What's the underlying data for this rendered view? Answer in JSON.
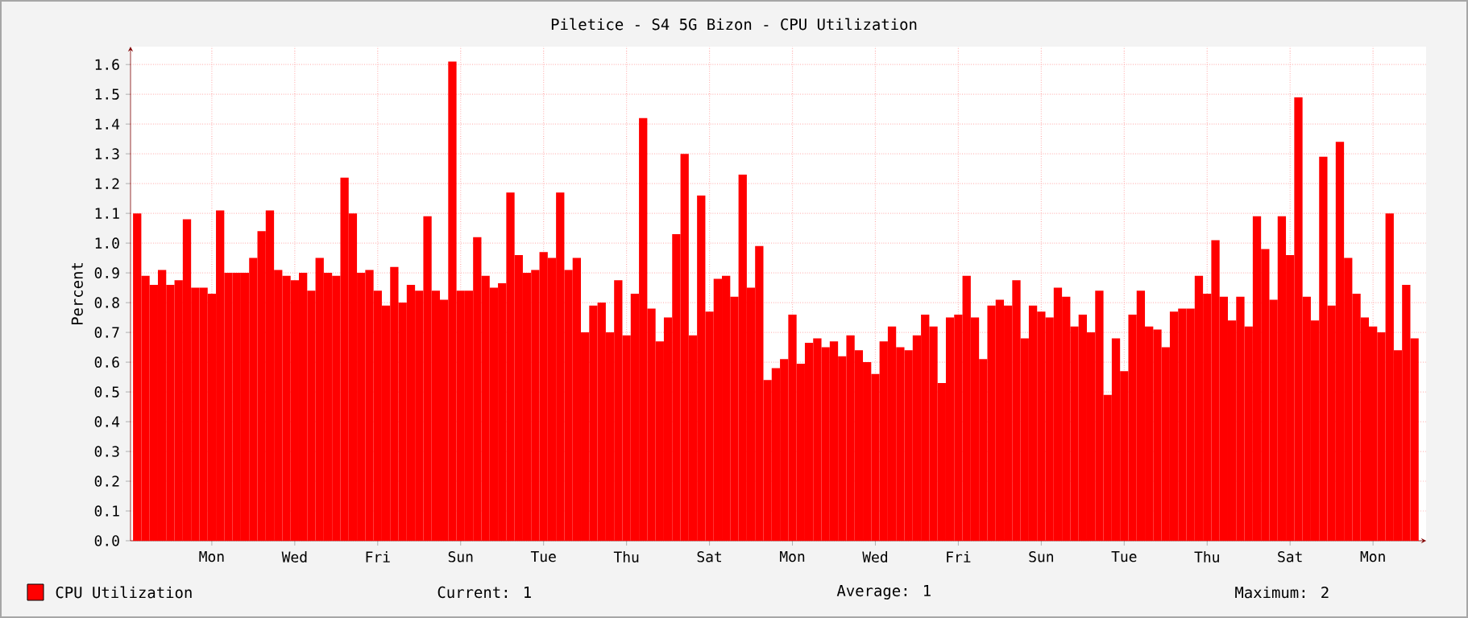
{
  "chart_data": {
    "type": "bar",
    "title": "Piletice - S4 5G Bizon - CPU Utilization",
    "ylabel": "Percent",
    "categories": [
      null,
      null,
      null,
      null,
      null,
      null,
      null,
      null,
      null,
      "Mon",
      null,
      null,
      null,
      null,
      null,
      null,
      null,
      null,
      null,
      "Wed",
      null,
      null,
      null,
      null,
      null,
      null,
      null,
      null,
      null,
      "Fri",
      null,
      null,
      null,
      null,
      null,
      null,
      null,
      null,
      null,
      "Sun",
      null,
      null,
      null,
      null,
      null,
      null,
      null,
      null,
      null,
      "Tue",
      null,
      null,
      null,
      null,
      null,
      null,
      null,
      null,
      null,
      "Thu",
      null,
      null,
      null,
      null,
      null,
      null,
      null,
      null,
      null,
      "Sat",
      null,
      null,
      null,
      null,
      null,
      null,
      null,
      null,
      null,
      "Mon",
      null,
      null,
      null,
      null,
      null,
      null,
      null,
      null,
      null,
      "Wed",
      null,
      null,
      null,
      null,
      null,
      null,
      null,
      null,
      null,
      "Fri",
      null,
      null,
      null,
      null,
      null,
      null,
      null,
      null,
      null,
      "Sun",
      null,
      null,
      null,
      null,
      null,
      null,
      null,
      null,
      null,
      "Tue",
      null,
      null,
      null,
      null,
      null,
      null,
      null,
      null,
      null,
      "Thu",
      null,
      null,
      null,
      null,
      null,
      null,
      null,
      null,
      null,
      "Sat",
      null,
      null,
      null,
      null,
      null,
      null,
      null,
      null,
      null,
      "Mon",
      null,
      null,
      null,
      null,
      null
    ],
    "ylim": [
      0,
      1.66
    ],
    "yticks": [
      {
        "value": 0,
        "label": "0.0"
      },
      0.1,
      0.2,
      0.3,
      0.4,
      0.5,
      0.6,
      0.7,
      0.8,
      0.9,
      {
        "value": 1,
        "label": "1.0"
      },
      1.1,
      1.2,
      1.3,
      1.4,
      1.5,
      1.6
    ],
    "grid": true,
    "legend": "bottom",
    "series": [
      {
        "name": "CPU Utilization",
        "color": "#ff0000",
        "values": [
          1.1,
          0.89,
          0.86,
          0.91,
          0.86,
          0.875,
          1.08,
          0.85,
          0.85,
          0.83,
          1.11,
          0.9,
          0.9,
          0.9,
          0.95,
          1.04,
          1.11,
          0.91,
          0.89,
          0.875,
          0.9,
          0.84,
          0.95,
          0.9,
          0.89,
          1.22,
          1.1,
          0.9,
          0.91,
          0.84,
          0.79,
          0.92,
          0.8,
          0.86,
          0.84,
          1.09,
          0.84,
          0.81,
          1.61,
          0.84,
          0.84,
          1.02,
          0.89,
          0.85,
          0.865,
          1.17,
          0.96,
          0.9,
          0.91,
          0.97,
          0.95,
          1.17,
          0.91,
          0.95,
          0.7,
          0.79,
          0.8,
          0.7,
          0.875,
          0.69,
          0.83,
          1.42,
          0.78,
          0.67,
          0.75,
          1.03,
          1.3,
          0.69,
          1.16,
          0.77,
          0.88,
          0.89,
          0.82,
          1.23,
          0.85,
          0.99,
          0.54,
          0.58,
          0.61,
          0.76,
          0.595,
          0.665,
          0.68,
          0.65,
          0.67,
          0.62,
          0.69,
          0.64,
          0.6,
          0.56,
          0.67,
          0.72,
          0.65,
          0.64,
          0.69,
          0.76,
          0.72,
          0.53,
          0.75,
          0.76,
          0.89,
          0.75,
          0.61,
          0.79,
          0.81,
          0.79,
          0.875,
          0.68,
          0.79,
          0.77,
          0.75,
          0.85,
          0.82,
          0.72,
          0.76,
          0.7,
          0.84,
          0.49,
          0.68,
          0.57,
          0.76,
          0.84,
          0.72,
          0.71,
          0.65,
          0.77,
          0.78,
          0.78,
          0.89,
          0.83,
          1.01,
          0.82,
          0.74,
          0.82,
          0.72,
          1.09,
          0.98,
          0.81,
          1.09,
          0.96,
          1.49,
          0.82,
          0.74,
          1.29,
          0.79,
          1.34,
          0.95,
          0.83,
          0.75,
          0.72,
          0.7,
          1.1,
          0.64,
          0.86,
          0.68
        ]
      }
    ],
    "annotations": [
      "Current: 1",
      "Average: 1",
      "Maximum: 2"
    ]
  }
}
